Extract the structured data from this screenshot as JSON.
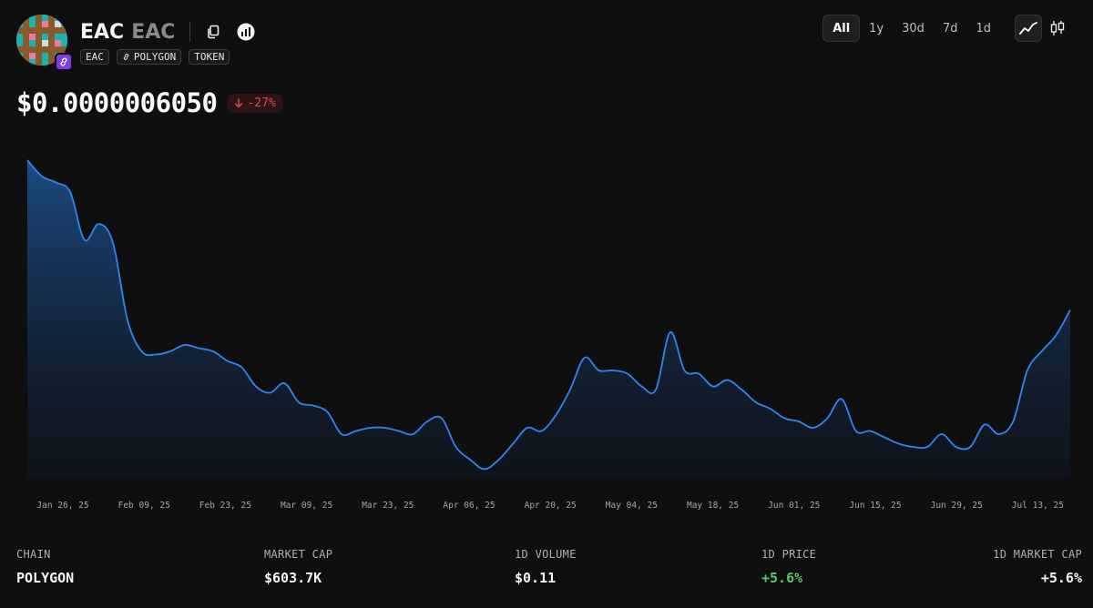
{
  "header": {
    "token_name": "EAC",
    "token_symbol": "EAC",
    "tags": [
      {
        "label": "EAC",
        "icon": ""
      },
      {
        "label": "POLYGON",
        "icon": "link-icon"
      },
      {
        "label": "TOKEN",
        "icon": ""
      }
    ],
    "actions": [
      "copy-icon",
      "chart-bars-icon"
    ]
  },
  "range": {
    "options": [
      "All",
      "1y",
      "30d",
      "7d",
      "1d"
    ],
    "active": "All",
    "chart_types": [
      "line-chart-icon",
      "candlestick-icon"
    ]
  },
  "price": {
    "value": "$0.0000006050",
    "change": "-27%",
    "direction": "down"
  },
  "chart_data": {
    "type": "area",
    "x_tick_labels": [
      "Jan 26, 25",
      "Feb 09, 25",
      "Feb 23, 25",
      "Mar 09, 25",
      "Mar 23, 25",
      "Apr 06, 25",
      "Apr 20, 25",
      "May 04, 25",
      "May 18, 25",
      "Jun 01, 25",
      "Jun 15, 25",
      "Jun 29, 25",
      "Jul 13, 25"
    ],
    "x_start": "Jan 19, 25",
    "x_end": "Jul 20, 25",
    "y_axis": "hidden",
    "grid": false,
    "line_color": "#2f86f0",
    "fill_color": "#1d4f8a",
    "values": [
      1.0,
      0.95,
      0.93,
      0.9,
      0.75,
      0.8,
      0.74,
      0.5,
      0.4,
      0.39,
      0.4,
      0.42,
      0.41,
      0.4,
      0.37,
      0.35,
      0.29,
      0.27,
      0.3,
      0.24,
      0.23,
      0.21,
      0.14,
      0.15,
      0.16,
      0.16,
      0.15,
      0.14,
      0.18,
      0.19,
      0.1,
      0.06,
      0.03,
      0.06,
      0.11,
      0.16,
      0.15,
      0.2,
      0.28,
      0.38,
      0.34,
      0.34,
      0.33,
      0.29,
      0.28,
      0.46,
      0.34,
      0.33,
      0.29,
      0.31,
      0.28,
      0.24,
      0.22,
      0.19,
      0.18,
      0.16,
      0.19,
      0.25,
      0.15,
      0.15,
      0.13,
      0.11,
      0.1,
      0.1,
      0.14,
      0.1,
      0.1,
      0.17,
      0.14,
      0.18,
      0.34,
      0.4,
      0.45,
      0.53
    ]
  },
  "stats": [
    {
      "label": "CHAIN",
      "value": "POLYGON",
      "tone": "neutral"
    },
    {
      "label": "MARKET CAP",
      "value": "$603.7K",
      "tone": "neutral"
    },
    {
      "label": "1D VOLUME",
      "value": "$0.11",
      "tone": "neutral"
    },
    {
      "label": "1D PRICE",
      "value": "+5.6%",
      "tone": "positive"
    },
    {
      "label": "1D MARKET CAP",
      "value": "+5.6%",
      "tone": "neutral"
    }
  ],
  "colors": {
    "background": "#0f0f0f",
    "accent_line": "#2f86f0",
    "negative": "#e0484f",
    "positive": "#5cc46a",
    "chain_badge": "#7b3fe4"
  }
}
